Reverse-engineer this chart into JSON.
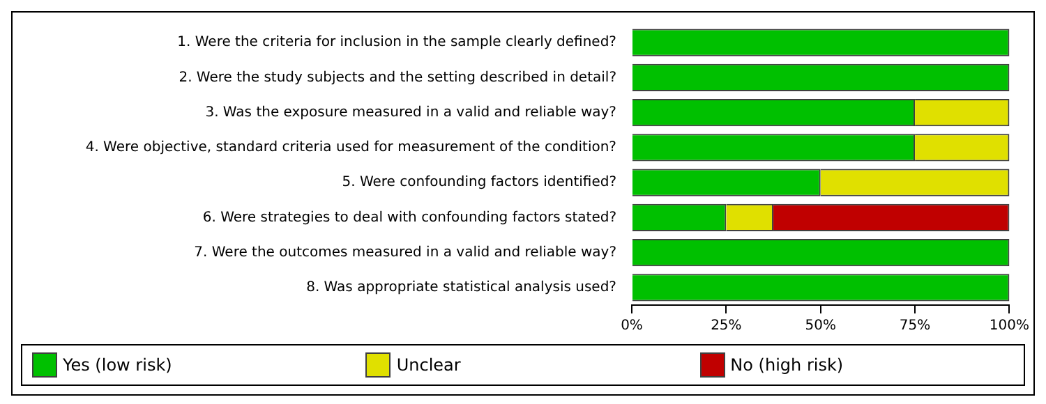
{
  "chart_data": {
    "type": "bar",
    "orientation": "horizontal",
    "stacked": true,
    "categories": [
      "1. Were the criteria for inclusion in the sample clearly defined?",
      "2. Were the study subjects and the setting described in detail?",
      "3. Was the exposure measured in a valid and reliable way?",
      "4. Were objective, standard criteria used for measurement of the condition?",
      "5. Were confounding factors identified?",
      "6. Were strategies to deal with confounding factors stated?",
      "7. Were the outcomes measured in a valid and reliable way?",
      "8. Was appropriate statistical analysis used?"
    ],
    "series": [
      {
        "name": "Yes (low risk)",
        "color": "#00c000",
        "values": [
          100,
          100,
          75,
          75,
          50,
          25,
          100,
          100
        ]
      },
      {
        "name": "Unclear",
        "color": "#e0e000",
        "values": [
          0,
          0,
          25,
          25,
          50,
          12.5,
          0,
          0
        ]
      },
      {
        "name": "No (high risk)",
        "color": "#c00000",
        "values": [
          0,
          0,
          0,
          0,
          0,
          62.5,
          0,
          0
        ]
      }
    ],
    "xlim": [
      0,
      100
    ],
    "xticks": [
      {
        "value": 0,
        "label": "0%"
      },
      {
        "value": 25,
        "label": "25%"
      },
      {
        "value": 50,
        "label": "50%"
      },
      {
        "value": 75,
        "label": "75%"
      },
      {
        "value": 100,
        "label": "100%"
      }
    ],
    "grid": false,
    "legend": "bottom"
  }
}
